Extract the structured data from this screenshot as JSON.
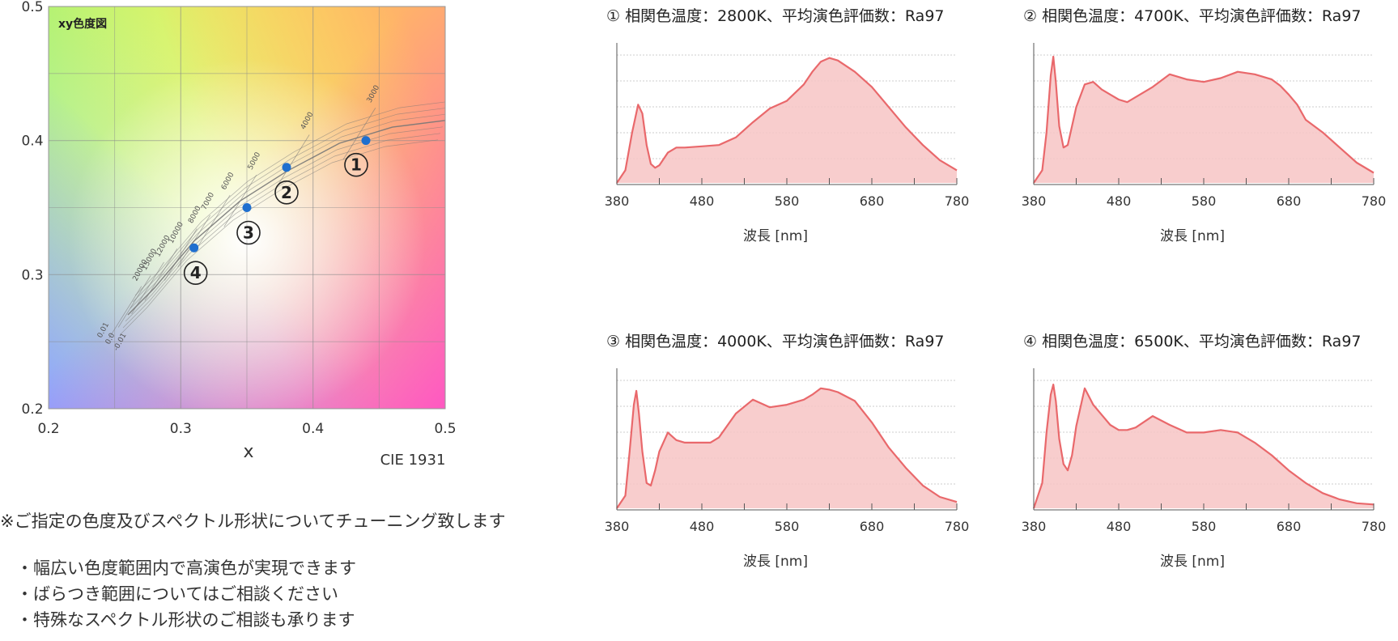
{
  "chart_data": [
    {
      "type": "scatter",
      "title": "xy色度図",
      "xlabel": "x",
      "ylabel": "",
      "footnote": "CIE 1931",
      "xlim": [
        0.2,
        0.5
      ],
      "ylim": [
        0.2,
        0.5
      ],
      "xticks": [
        "0.2",
        "0.3",
        "0.4",
        "0.5"
      ],
      "yticks": [
        "0.2",
        "0.3",
        "0.4",
        "0.5"
      ],
      "grid": true,
      "points": [
        {
          "label": "①",
          "x": 0.44,
          "y": 0.4
        },
        {
          "label": "②",
          "x": 0.38,
          "y": 0.38
        },
        {
          "label": "③",
          "x": 0.35,
          "y": 0.35
        },
        {
          "label": "④",
          "x": 0.31,
          "y": 0.32
        }
      ],
      "isotherm_labels": [
        "3000",
        "4000",
        "5000",
        "6000",
        "7000",
        "8000",
        "10000",
        "12000",
        "15000",
        "20000"
      ],
      "duv_labels": [
        "0.01",
        "0.0",
        "-0.01"
      ],
      "planckian_locus": [
        {
          "x": 0.26,
          "y": 0.27
        },
        {
          "x": 0.28,
          "y": 0.29
        },
        {
          "x": 0.31,
          "y": 0.325
        },
        {
          "x": 0.345,
          "y": 0.355
        },
        {
          "x": 0.38,
          "y": 0.377
        },
        {
          "x": 0.42,
          "y": 0.398
        },
        {
          "x": 0.46,
          "y": 0.41
        },
        {
          "x": 0.5,
          "y": 0.415
        }
      ]
    },
    {
      "type": "area",
      "title": "① 相関色温度：2800K、平均演色評価数：Ra97",
      "xlabel": "波長 [nm]",
      "ylabel": "",
      "xlim": [
        380,
        780
      ],
      "ylim": [
        0,
        1
      ],
      "xticks": [
        "380",
        "480",
        "580",
        "680",
        "780"
      ],
      "x": [
        380,
        390,
        398,
        405,
        410,
        415,
        420,
        425,
        430,
        440,
        450,
        460,
        480,
        500,
        520,
        540,
        560,
        580,
        600,
        610,
        620,
        630,
        640,
        660,
        680,
        700,
        720,
        740,
        760,
        780
      ],
      "y": [
        0.0,
        0.1,
        0.4,
        0.62,
        0.55,
        0.3,
        0.15,
        0.12,
        0.14,
        0.24,
        0.28,
        0.28,
        0.29,
        0.3,
        0.36,
        0.48,
        0.59,
        0.65,
        0.78,
        0.88,
        0.96,
        0.99,
        0.97,
        0.88,
        0.76,
        0.6,
        0.44,
        0.3,
        0.18,
        0.1
      ]
    },
    {
      "type": "area",
      "title": "② 相関色温度：4700K、平均演色評価数：Ra97",
      "xlabel": "波長 [nm]",
      "ylabel": "",
      "xlim": [
        380,
        780
      ],
      "ylim": [
        0,
        1
      ],
      "xticks": [
        "380",
        "480",
        "580",
        "680",
        "780"
      ],
      "x": [
        380,
        390,
        395,
        400,
        403,
        406,
        410,
        415,
        420,
        425,
        430,
        440,
        450,
        460,
        470,
        480,
        490,
        500,
        520,
        540,
        560,
        580,
        600,
        620,
        640,
        660,
        670,
        680,
        690,
        700,
        720,
        740,
        760,
        780
      ],
      "y": [
        0.0,
        0.1,
        0.4,
        0.85,
        1.0,
        0.8,
        0.45,
        0.28,
        0.3,
        0.45,
        0.6,
        0.78,
        0.8,
        0.74,
        0.7,
        0.66,
        0.64,
        0.68,
        0.76,
        0.86,
        0.82,
        0.8,
        0.83,
        0.88,
        0.86,
        0.82,
        0.77,
        0.7,
        0.62,
        0.5,
        0.4,
        0.28,
        0.16,
        0.08
      ]
    },
    {
      "type": "area",
      "title": "③ 相関色温度：4000K、平均演色評価数：Ra97",
      "xlabel": "波長 [nm]",
      "ylabel": "",
      "xlim": [
        380,
        780
      ],
      "ylim": [
        0,
        1
      ],
      "xticks": [
        "380",
        "480",
        "580",
        "680",
        "780"
      ],
      "x": [
        380,
        390,
        395,
        400,
        403,
        406,
        410,
        415,
        420,
        425,
        430,
        440,
        450,
        460,
        470,
        480,
        490,
        500,
        520,
        540,
        560,
        580,
        600,
        610,
        620,
        630,
        640,
        660,
        680,
        700,
        720,
        740,
        760,
        780
      ],
      "y": [
        0.0,
        0.1,
        0.45,
        0.82,
        0.93,
        0.75,
        0.45,
        0.2,
        0.18,
        0.3,
        0.45,
        0.6,
        0.54,
        0.52,
        0.52,
        0.52,
        0.52,
        0.56,
        0.75,
        0.86,
        0.8,
        0.82,
        0.86,
        0.9,
        0.95,
        0.94,
        0.92,
        0.85,
        0.68,
        0.48,
        0.32,
        0.18,
        0.09,
        0.05
      ]
    },
    {
      "type": "area",
      "title": "④ 相関色温度：6500K、平均演色評価数：Ra97",
      "xlabel": "波長 [nm]",
      "ylabel": "",
      "xlim": [
        380,
        780
      ],
      "ylim": [
        0,
        1
      ],
      "xticks": [
        "380",
        "480",
        "580",
        "680",
        "780"
      ],
      "x": [
        380,
        390,
        395,
        400,
        403,
        406,
        410,
        415,
        420,
        425,
        430,
        440,
        450,
        460,
        470,
        480,
        490,
        500,
        520,
        540,
        560,
        580,
        600,
        620,
        640,
        660,
        680,
        700,
        720,
        740,
        760,
        780
      ],
      "y": [
        0.0,
        0.2,
        0.6,
        0.9,
        0.98,
        0.85,
        0.55,
        0.35,
        0.3,
        0.42,
        0.65,
        0.95,
        0.82,
        0.74,
        0.66,
        0.62,
        0.62,
        0.64,
        0.73,
        0.66,
        0.6,
        0.6,
        0.62,
        0.6,
        0.52,
        0.42,
        0.3,
        0.2,
        0.12,
        0.07,
        0.04,
        0.03
      ]
    }
  ],
  "notes": {
    "main": "※ご指定の色度及びスペクトル形状についてチューニング致します",
    "bullets": [
      "・幅広い色度範囲内で高演色が実現できます",
      "・ばらつき範囲についてはご相談ください",
      "・特殊なスペクトル形状のご相談も承ります"
    ]
  },
  "colors": {
    "spectrum_line": "#e9686b",
    "spectrum_fill": "#f7c4c4",
    "point": "#1f6fcf",
    "grid": "#8a8a8a",
    "text": "#333333"
  }
}
